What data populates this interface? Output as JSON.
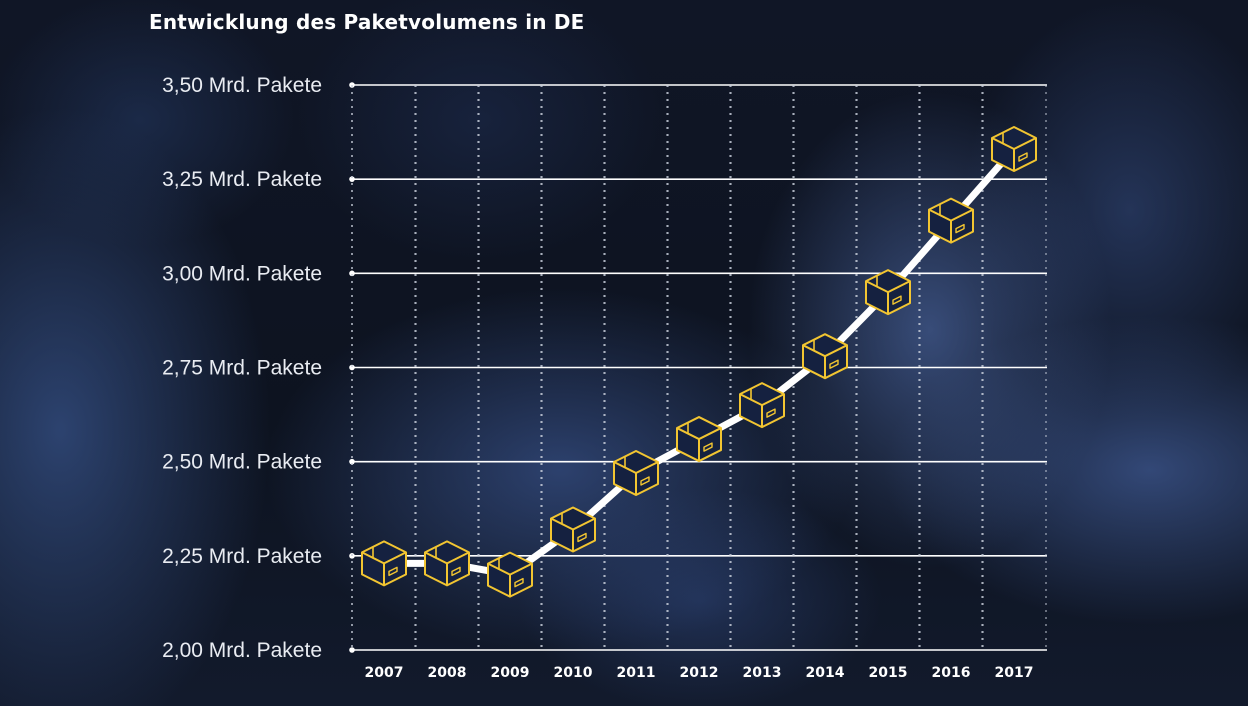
{
  "chart_data": {
    "type": "line",
    "title": "Entwicklung des Paketvolumens in DE",
    "x": [
      "2007",
      "2008",
      "2009",
      "2010",
      "2011",
      "2012",
      "2013",
      "2014",
      "2015",
      "2016",
      "2017"
    ],
    "y_tick_labels": [
      "3,50 Mrd. Pakete",
      "3,25 Mrd. Pakete",
      "3,00 Mrd. Pakete",
      "2,75 Mrd. Pakete",
      "2,50 Mrd. Pakete",
      "2,25 Mrd. Pakete",
      "2,00 Mrd. Pakete"
    ],
    "y_ticks": [
      3.5,
      3.25,
      3.0,
      2.75,
      2.5,
      2.25,
      2.0
    ],
    "ylim": [
      2.0,
      3.5
    ],
    "series": [
      {
        "values": [
          2.23,
          2.23,
          2.2,
          2.32,
          2.47,
          2.56,
          2.65,
          2.78,
          2.95,
          3.14,
          3.33
        ]
      }
    ],
    "grid": true,
    "colors": {
      "line": "#ffffff",
      "marker_fill": "#152140",
      "marker_stroke": "#f2c531",
      "grid": "#ffffff"
    }
  }
}
